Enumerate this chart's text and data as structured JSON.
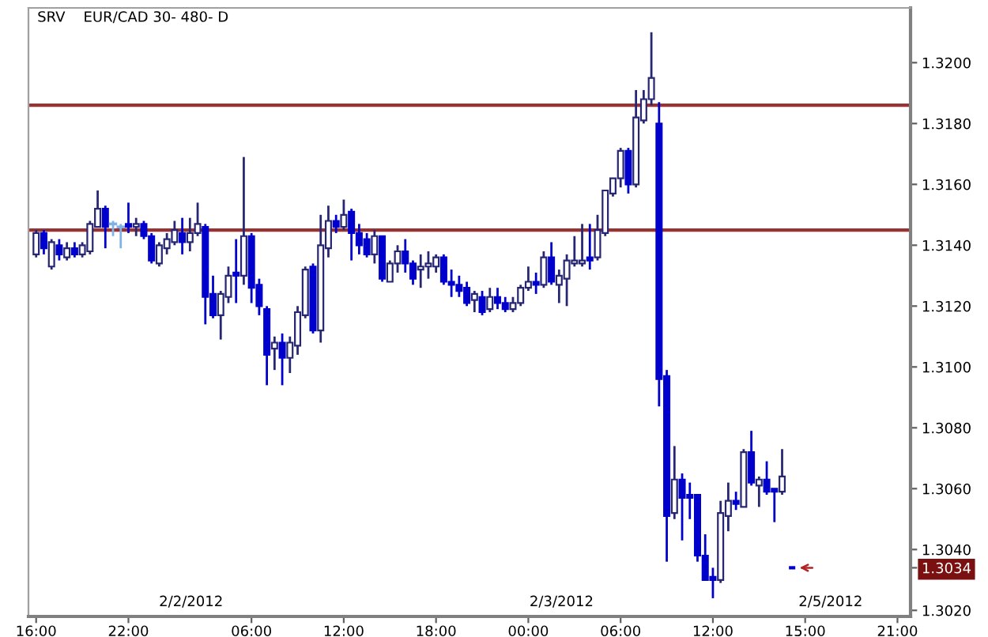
{
  "chart_data": {
    "type": "candlestick",
    "title": "SRV    EUR/CAD 30- 480- D",
    "categories": [
      "16:00",
      null,
      null,
      null,
      null,
      null,
      null,
      null,
      null,
      null,
      null,
      null,
      "22:00",
      null,
      null,
      null,
      null,
      null,
      null,
      null,
      null,
      null,
      null,
      null,
      null,
      null,
      null,
      null,
      "06:00",
      null,
      null,
      null,
      null,
      null,
      null,
      null,
      null,
      null,
      null,
      null,
      "12:00",
      null,
      null,
      null,
      null,
      null,
      null,
      null,
      null,
      null,
      null,
      null,
      "18:00",
      null,
      null,
      null,
      null,
      null,
      null,
      null,
      null,
      null,
      null,
      null,
      "00:00",
      null,
      null,
      null,
      null,
      null,
      null,
      null,
      null,
      null,
      null,
      null,
      "06:00",
      null,
      null,
      null,
      null,
      null,
      null,
      null,
      null,
      null,
      null,
      null,
      "12:00",
      null,
      null,
      null,
      null,
      null,
      null,
      null,
      null,
      null,
      null,
      null,
      "15:00",
      null,
      null,
      null,
      null,
      null,
      null,
      null,
      null,
      null,
      null,
      null,
      "21:00"
    ],
    "ohlc": [
      [
        1.3137,
        1.3145,
        1.3136,
        1.3144
      ],
      [
        1.3144,
        1.3145,
        1.3137,
        1.3139
      ],
      [
        1.3133,
        1.3142,
        1.3132,
        1.3141
      ],
      [
        1.314,
        1.3142,
        1.3135,
        1.3137
      ],
      [
        1.3136,
        1.3141,
        1.3135,
        1.3139
      ],
      [
        1.3139,
        1.3141,
        1.3136,
        1.3137
      ],
      [
        1.3137,
        1.3141,
        1.3136,
        1.314
      ],
      [
        1.3138,
        1.3148,
        1.3137,
        1.3147
      ],
      [
        1.3146,
        1.3158,
        1.3146,
        1.3152
      ],
      [
        1.3152,
        1.3153,
        1.3139,
        1.3146
      ],
      [
        1.3147,
        1.3148,
        1.3143,
        1.3147
      ],
      [
        1.3146,
        1.3147,
        1.3139,
        1.3146
      ],
      [
        1.3147,
        1.3154,
        1.3144,
        1.3146
      ],
      [
        1.3146,
        1.3149,
        1.3143,
        1.3147
      ],
      [
        1.3147,
        1.3148,
        1.3142,
        1.3143
      ],
      [
        1.3143,
        1.3144,
        1.3134,
        1.3135
      ],
      [
        1.3134,
        1.3141,
        1.3133,
        1.314
      ],
      [
        1.3139,
        1.3144,
        1.3137,
        1.3142
      ],
      [
        1.3141,
        1.3148,
        1.314,
        1.3145
      ],
      [
        1.3144,
        1.3149,
        1.3137,
        1.3141
      ],
      [
        1.3141,
        1.3149,
        1.3138,
        1.3144
      ],
      [
        1.3144,
        1.3154,
        1.3143,
        1.3147
      ],
      [
        1.3146,
        1.3147,
        1.3114,
        1.3123
      ],
      [
        1.3124,
        1.313,
        1.3116,
        1.3117
      ],
      [
        1.3117,
        1.3125,
        1.3109,
        1.3124
      ],
      [
        1.3123,
        1.3133,
        1.3121,
        1.313
      ],
      [
        1.3131,
        1.3142,
        1.3121,
        1.313
      ],
      [
        1.313,
        1.3169,
        1.3127,
        1.3143
      ],
      [
        1.3143,
        1.3144,
        1.3121,
        1.3126
      ],
      [
        1.3127,
        1.3129,
        1.3117,
        1.312
      ],
      [
        1.3119,
        1.312,
        1.3094,
        1.3104
      ],
      [
        1.3106,
        1.311,
        1.3099,
        1.3108
      ],
      [
        1.3108,
        1.3111,
        1.3094,
        1.3103
      ],
      [
        1.3103,
        1.311,
        1.3098,
        1.3108
      ],
      [
        1.3107,
        1.312,
        1.3104,
        1.3118
      ],
      [
        1.3117,
        1.3133,
        1.3116,
        1.3132
      ],
      [
        1.3133,
        1.3134,
        1.3111,
        1.3112
      ],
      [
        1.3112,
        1.315,
        1.3108,
        1.314
      ],
      [
        1.3139,
        1.3153,
        1.3136,
        1.3148
      ],
      [
        1.3148,
        1.315,
        1.3144,
        1.3146
      ],
      [
        1.3146,
        1.3155,
        1.3145,
        1.315
      ],
      [
        1.3151,
        1.3152,
        1.3135,
        1.3144
      ],
      [
        1.3144,
        1.3147,
        1.3137,
        1.314
      ],
      [
        1.3142,
        1.3144,
        1.3136,
        1.3137
      ],
      [
        1.3137,
        1.3145,
        1.3134,
        1.3143
      ],
      [
        1.3143,
        1.3143,
        1.3128,
        1.3129
      ],
      [
        1.3128,
        1.3135,
        1.3128,
        1.3134
      ],
      [
        1.3134,
        1.314,
        1.3131,
        1.3138
      ],
      [
        1.3138,
        1.3142,
        1.3131,
        1.3134
      ],
      [
        1.3134,
        1.3135,
        1.3127,
        1.3129
      ],
      [
        1.3132,
        1.3137,
        1.3126,
        1.3133
      ],
      [
        1.3133,
        1.3138,
        1.3129,
        1.3134
      ],
      [
        1.3133,
        1.3137,
        1.3131,
        1.3136
      ],
      [
        1.3136,
        1.3137,
        1.3127,
        1.3128
      ],
      [
        1.3128,
        1.3132,
        1.3123,
        1.3127
      ],
      [
        1.3127,
        1.313,
        1.3123,
        1.3125
      ],
      [
        1.3126,
        1.3128,
        1.312,
        1.3121
      ],
      [
        1.3122,
        1.3125,
        1.3118,
        1.3124
      ],
      [
        1.3123,
        1.3125,
        1.3117,
        1.3118
      ],
      [
        1.3119,
        1.3126,
        1.3118,
        1.3123
      ],
      [
        1.3123,
        1.3126,
        1.3119,
        1.3121
      ],
      [
        1.3121,
        1.3123,
        1.3118,
        1.3119
      ],
      [
        1.3119,
        1.3123,
        1.3118,
        1.3121
      ],
      [
        1.3121,
        1.3127,
        1.312,
        1.3126
      ],
      [
        1.3126,
        1.3133,
        1.3125,
        1.3128
      ],
      [
        1.3128,
        1.3131,
        1.3124,
        1.3127
      ],
      [
        1.3127,
        1.3138,
        1.3126,
        1.3136
      ],
      [
        1.3136,
        1.3141,
        1.3127,
        1.3128
      ],
      [
        1.3127,
        1.3132,
        1.3121,
        1.313
      ],
      [
        1.3129,
        1.3137,
        1.312,
        1.3135
      ],
      [
        1.3134,
        1.3143,
        1.3133,
        1.3135
      ],
      [
        1.3134,
        1.3147,
        1.3133,
        1.3135
      ],
      [
        1.3136,
        1.3147,
        1.3132,
        1.3135
      ],
      [
        1.3136,
        1.315,
        1.3135,
        1.3145
      ],
      [
        1.3144,
        1.3158,
        1.3143,
        1.3158
      ],
      [
        1.3157,
        1.3162,
        1.3156,
        1.3162
      ],
      [
        1.3162,
        1.3172,
        1.3159,
        1.3171
      ],
      [
        1.3171,
        1.3172,
        1.3157,
        1.316
      ],
      [
        1.316,
        1.3191,
        1.3159,
        1.3182
      ],
      [
        1.3181,
        1.3191,
        1.318,
        1.3188
      ],
      [
        1.3188,
        1.321,
        1.3186,
        1.3195
      ],
      [
        1.318,
        1.3187,
        1.3087,
        1.3096
      ],
      [
        1.3097,
        1.3099,
        1.3036,
        1.3051
      ],
      [
        1.3052,
        1.3074,
        1.305,
        1.3063
      ],
      [
        1.3063,
        1.3065,
        1.3043,
        1.3057
      ],
      [
        1.3058,
        1.3062,
        1.305,
        1.3057
      ],
      [
        1.3058,
        1.3058,
        1.3036,
        1.3038
      ],
      [
        1.3038,
        1.3045,
        1.303,
        1.303
      ],
      [
        1.3031,
        1.3034,
        1.3024,
        1.303
      ],
      [
        1.303,
        1.3056,
        1.3029,
        1.3052
      ],
      [
        1.3051,
        1.3062,
        1.3046,
        1.3056
      ],
      [
        1.3056,
        1.3059,
        1.3053,
        1.3055
      ],
      [
        1.3054,
        1.3073,
        1.3054,
        1.3072
      ],
      [
        1.3072,
        1.3079,
        1.3061,
        1.3062
      ],
      [
        1.3061,
        1.3064,
        1.3054,
        1.3063
      ],
      [
        1.3063,
        1.3069,
        1.3058,
        1.3059
      ],
      [
        1.306,
        1.306,
        1.3049,
        1.3059
      ],
      [
        1.3059,
        1.3073,
        1.3058,
        1.3064
      ],
      null,
      null,
      null,
      null,
      null,
      null,
      null,
      null,
      null,
      null,
      null,
      null,
      null,
      null,
      null
    ],
    "colors": [
      "#262673",
      "#0000cc",
      "#262673",
      "#0000cc",
      "#262673",
      "#0000cc",
      "#262673",
      "#262673",
      "#262673",
      "#0000cc",
      "#7fb2e5",
      "#7fb2e5",
      "#0000cc",
      "#262673",
      "#0000cc",
      "#0000cc",
      "#262673",
      "#262673",
      "#262673",
      "#0000cc",
      "#262673",
      "#262673",
      "#0000cc",
      "#0000cc",
      "#262673",
      "#262673",
      "#0000cc",
      "#262673",
      "#0000cc",
      "#0000cc",
      "#0000cc",
      "#262673",
      "#0000cc",
      "#262673",
      "#262673",
      "#262673",
      "#0000cc",
      "#262673",
      "#262673",
      "#0000cc",
      "#262673",
      "#0000cc",
      "#0000cc",
      "#0000cc",
      "#262673",
      "#0000cc",
      "#262673",
      "#262673",
      "#0000cc",
      "#0000cc",
      "#262673",
      "#262673",
      "#262673",
      "#0000cc",
      "#0000cc",
      "#0000cc",
      "#0000cc",
      "#262673",
      "#0000cc",
      "#262673",
      "#0000cc",
      "#0000cc",
      "#262673",
      "#262673",
      "#262673",
      "#0000cc",
      "#262673",
      "#0000cc",
      "#262673",
      "#262673",
      "#262673",
      "#262673",
      "#0000cc",
      "#262673",
      "#262673",
      "#262673",
      "#262673",
      "#0000cc",
      "#262673",
      "#262673",
      "#262673",
      "#0000cc",
      "#0000cc",
      "#262673",
      "#0000cc",
      "#0000cc",
      "#0000cc",
      "#0000cc",
      "#0000cc",
      "#262673",
      "#262673",
      "#0000cc",
      "#262673",
      "#0000cc",
      "#262673",
      "#0000cc",
      "#0000cc",
      "#262673",
      null,
      null,
      null,
      null,
      null,
      null,
      null,
      null,
      null,
      null,
      null,
      null,
      null,
      null,
      null
    ],
    "ylim": [
      1.3018,
      1.3218
    ],
    "yticks": [
      {
        "value": 1.302,
        "label": "1.3020"
      },
      {
        "value": 1.3034,
        "label": "1.3034"
      },
      {
        "value": 1.304,
        "label": "1.3040"
      },
      {
        "value": 1.306,
        "label": "1.3060"
      },
      {
        "value": 1.308,
        "label": "1.3080"
      },
      {
        "value": 1.31,
        "label": "1.3100"
      },
      {
        "value": 1.312,
        "label": "1.3120"
      },
      {
        "value": 1.314,
        "label": "1.3140"
      },
      {
        "value": 1.316,
        "label": "1.3160"
      },
      {
        "value": 1.318,
        "label": "1.3180"
      },
      {
        "value": 1.32,
        "label": "1.3200"
      }
    ],
    "ref_lines": [
      {
        "axis": "y",
        "value": 1.3186,
        "color": "#993333"
      },
      {
        "axis": "y",
        "value": 1.3145,
        "color": "#993333"
      }
    ],
    "annotations": [
      "2/2/2012",
      "2/3/2012",
      "2/5/2012"
    ]
  }
}
